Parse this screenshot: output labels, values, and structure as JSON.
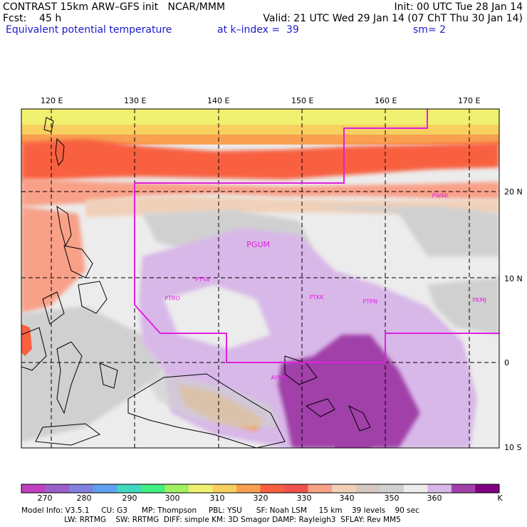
{
  "header": {
    "line1_left": "CONTRAST 15km ARW–GFS init   NCAR/MMM",
    "line1_right": "Init: 00 UTC Tue 28 Jan 14",
    "line2_left": "Fcst:    45 h",
    "line2_right": "Valid: 21 UTC Wed 29 Jan 14 (07 ChT Thu 30 Jan 14)",
    "line3_left": "Equivalent potential temperature",
    "line3_mid": "at k–index =  39",
    "line3_right": "sm= 2"
  },
  "map": {
    "lon_labels": [
      "120 E",
      "130 E",
      "140 E",
      "150 E",
      "160 E",
      "170 E"
    ],
    "lat_labels": [
      "20 N",
      "10 N",
      "0",
      "10 S"
    ],
    "stations": [
      {
        "id": "PGUM",
        "lon": 144.8,
        "lat": 13.5
      },
      {
        "id": "PTYA",
        "lon": 138.1,
        "lat": 9.5
      },
      {
        "id": "PTRO",
        "lon": 134.5,
        "lat": 7.3
      },
      {
        "id": "PTKK",
        "lon": 151.8,
        "lat": 7.4
      },
      {
        "id": "PTPN",
        "lon": 158.2,
        "lat": 6.9
      },
      {
        "id": "PKMJ",
        "lon": 171.3,
        "lat": 7.1
      },
      {
        "id": "PWAK",
        "lon": 166.6,
        "lat": 19.3
      },
      {
        "id": "AYMO",
        "lon": 147.3,
        "lat": -2.0
      }
    ],
    "colors": {
      "boundary": "#e020e0",
      "station": "#e020e0",
      "grid": "#000000",
      "coast": "#000000"
    }
  },
  "colorbar": {
    "labels": [
      "270",
      "280",
      "290",
      "300",
      "310",
      "320",
      "330",
      "340",
      "350",
      "360"
    ],
    "unit": "K",
    "colors": [
      "#c040c0",
      "#9a60c8",
      "#8080e0",
      "#60a0f0",
      "#40d8c0",
      "#40f080",
      "#a0f060",
      "#f0f070",
      "#f8d060",
      "#f8a050",
      "#f86040",
      "#f05050",
      "#f8a088",
      "#f0d0b8",
      "#d8c8c0",
      "#d0d0d0",
      "#ececec",
      "#d8b8e8",
      "#a040a8",
      "#800080"
    ]
  },
  "footer": {
    "line1": "Model Info: V3.5.1     CU: G3      MP: Thompson     PBL: YSU      SF: Noah LSM     15 km    39 levels    90 sec",
    "line2": "                  LW: RRTMG    SW: RRTMG  DIFF: simple KM: 3D Smagor DAMP: Rayleigh3  SFLAY: Rev MM5"
  }
}
